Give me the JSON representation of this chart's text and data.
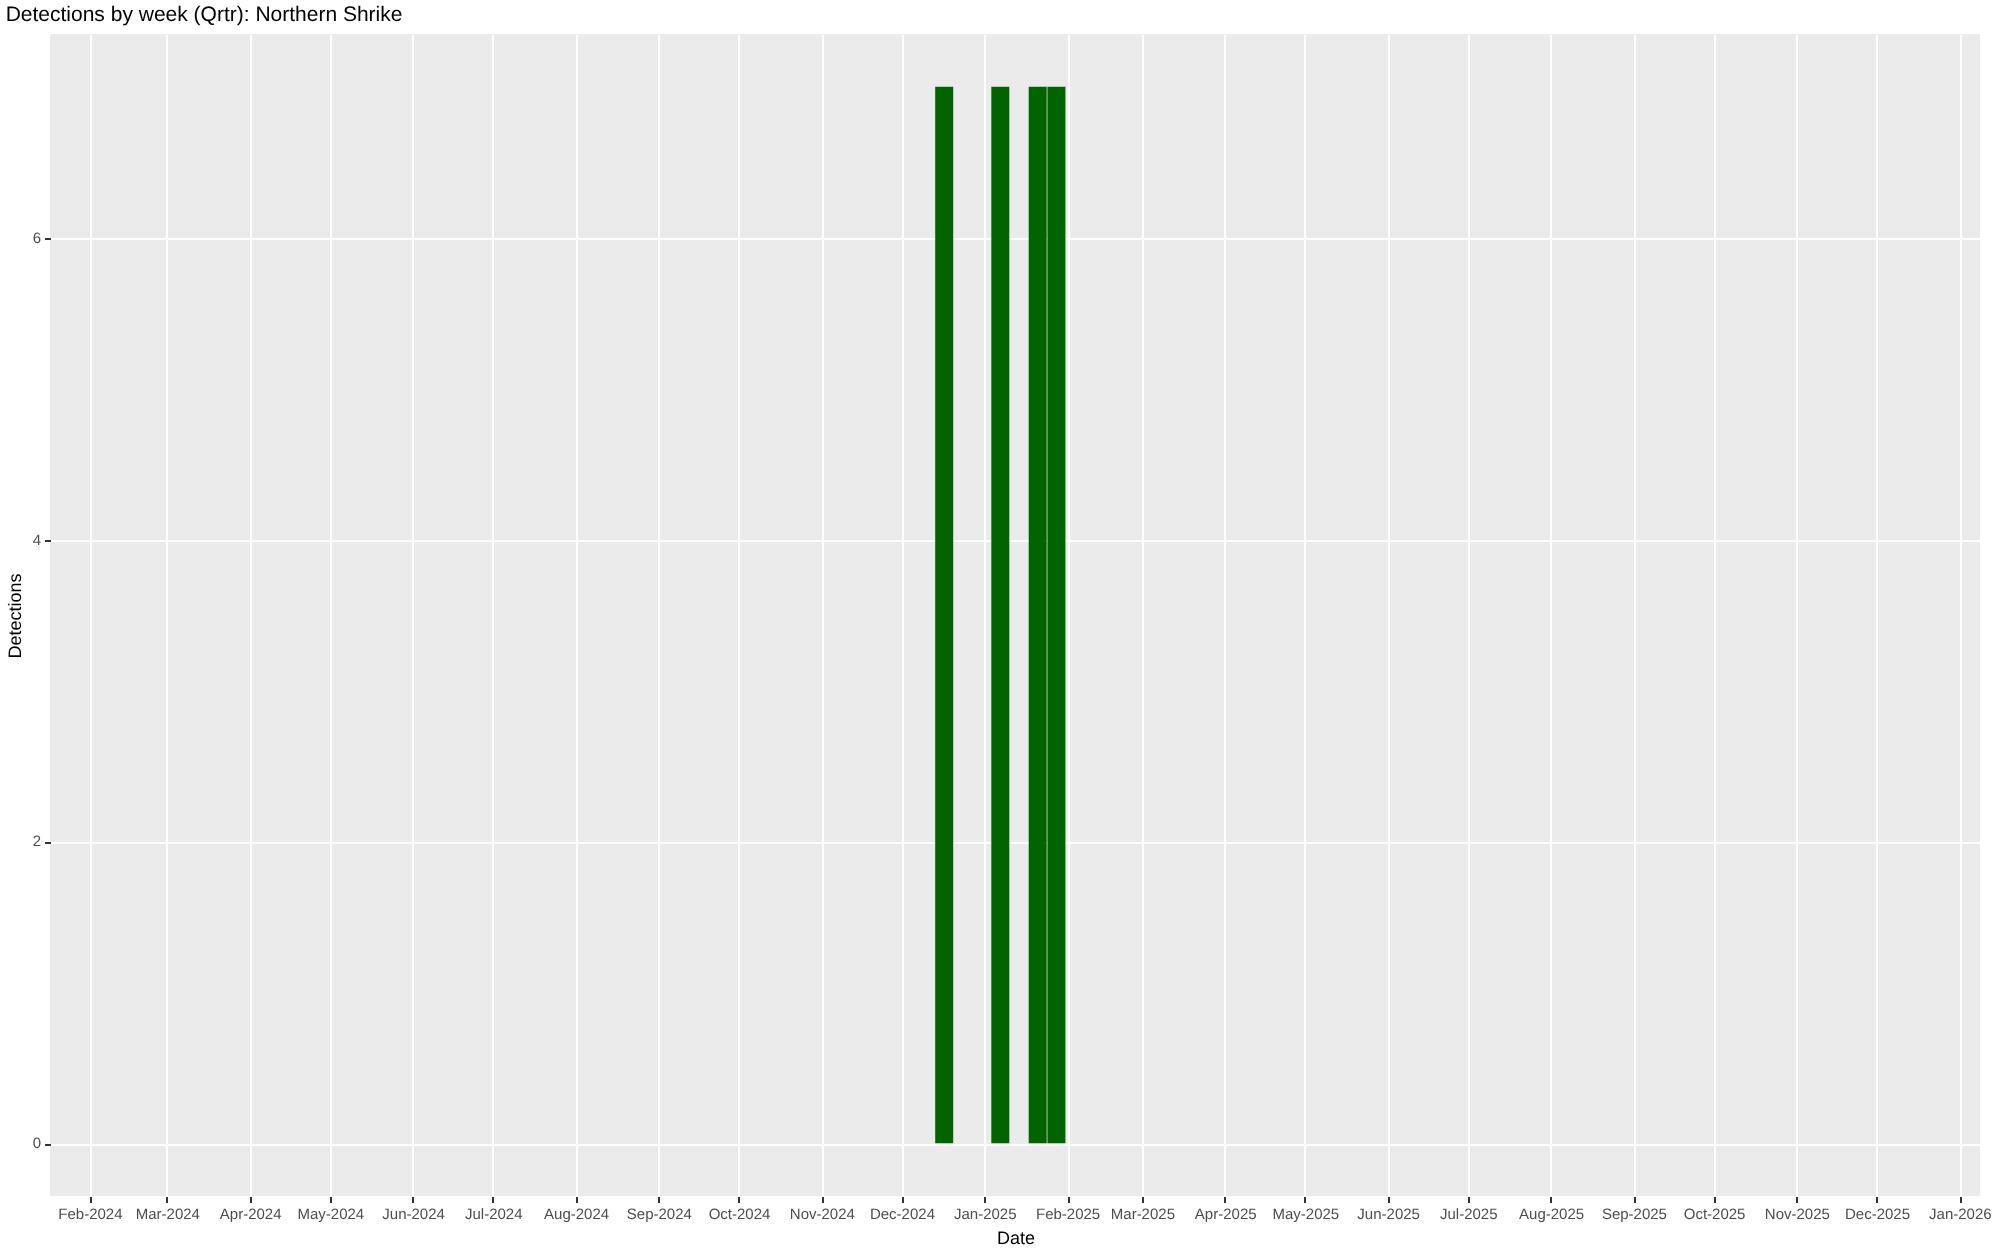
{
  "chart_data": {
    "type": "bar",
    "title": "Detections by week (Qrtr): Northern Shrike",
    "xlabel": "Date",
    "ylabel": "Detections",
    "x": [
      "2024-12-17",
      "2025-01-07",
      "2025-01-21",
      "2025-01-28"
    ],
    "series": [
      {
        "color": "#006400",
        "values": [
          7,
          7,
          7,
          7
        ]
      }
    ],
    "xlim": [
      "2024-01-21",
      "2026-01-05"
    ],
    "xticks": [
      {
        "value": "2024-02-01",
        "label": "Feb-2024"
      },
      {
        "value": "2024-03-01",
        "label": "Mar-2024"
      },
      {
        "value": "2024-04-01",
        "label": "Apr-2024"
      },
      {
        "value": "2024-05-01",
        "label": "May-2024"
      },
      {
        "value": "2024-06-01",
        "label": "Jun-2024"
      },
      {
        "value": "2024-07-01",
        "label": "Jul-2024"
      },
      {
        "value": "2024-08-01",
        "label": "Aug-2024"
      },
      {
        "value": "2024-09-01",
        "label": "Sep-2024"
      },
      {
        "value": "2024-10-01",
        "label": "Oct-2024"
      },
      {
        "value": "2024-11-01",
        "label": "Nov-2024"
      },
      {
        "value": "2024-12-01",
        "label": "Dec-2024"
      },
      {
        "value": "2025-01-01",
        "label": "Jan-2025"
      },
      {
        "value": "2025-02-01",
        "label": "Feb-2025"
      },
      {
        "value": "2025-03-01",
        "label": "Mar-2025"
      },
      {
        "value": "2025-04-01",
        "label": "Apr-2025"
      },
      {
        "value": "2025-05-01",
        "label": "May-2025"
      },
      {
        "value": "2025-06-01",
        "label": "Jun-2025"
      },
      {
        "value": "2025-07-01",
        "label": "Jul-2025"
      },
      {
        "value": "2025-08-01",
        "label": "Aug-2025"
      },
      {
        "value": "2025-09-01",
        "label": "Sep-2025"
      },
      {
        "value": "2025-10-01",
        "label": "Oct-2025"
      },
      {
        "value": "2025-11-01",
        "label": "Nov-2025"
      },
      {
        "value": "2025-12-01",
        "label": "Dec-2025"
      },
      {
        "value": "2026-01-01",
        "label": "Jan-2026"
      }
    ],
    "ylim": [
      -0.35,
      7.35
    ],
    "yticks": [
      0,
      2,
      4,
      6
    ],
    "grid": true
  }
}
